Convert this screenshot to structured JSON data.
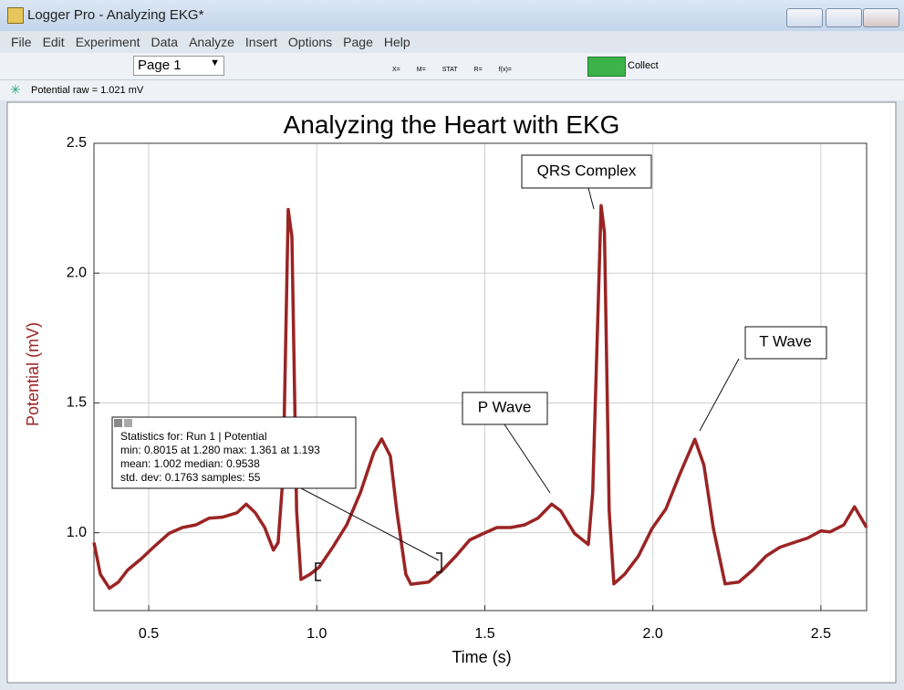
{
  "window": {
    "title": "Logger Pro - Analyzing EKG*"
  },
  "menu": [
    "File",
    "Edit",
    "Experiment",
    "Data",
    "Analyze",
    "Insert",
    "Options",
    "Page",
    "Help"
  ],
  "toolbar": {
    "page": "Page 1",
    "icon_labels": [
      "X=",
      "M=",
      "STAT",
      "R=",
      "f(x)="
    ],
    "collect": "Collect"
  },
  "status": "Potential raw = 1.021 mV",
  "chart_data": {
    "type": "line",
    "title": "Analyzing the Heart with EKG",
    "x_label": "Time (s)",
    "y_label": "Potential (mV)",
    "x": [
      0.337,
      0.356,
      0.383,
      0.41,
      0.437,
      0.478,
      0.519,
      0.56,
      0.6,
      0.64,
      0.68,
      0.72,
      0.763,
      0.79,
      0.817,
      0.845,
      0.871,
      0.885,
      0.9,
      0.915,
      0.926,
      0.94,
      0.953,
      0.98,
      1.007,
      1.048,
      1.089,
      1.13,
      1.17,
      1.193,
      1.219,
      1.238,
      1.265,
      1.28,
      1.333,
      1.374,
      1.414,
      1.455,
      1.496,
      1.536,
      1.577,
      1.618,
      1.658,
      1.699,
      1.726,
      1.767,
      1.808,
      1.821,
      1.846,
      1.856,
      1.87,
      1.884,
      1.916,
      1.957,
      1.998,
      2.039,
      2.08,
      2.125,
      2.152,
      2.18,
      2.215,
      2.256,
      2.297,
      2.337,
      2.378,
      2.419,
      2.46,
      2.5,
      2.527,
      2.568,
      2.6,
      2.636
    ],
    "values": [
      0.962,
      0.84,
      0.786,
      0.81,
      0.856,
      0.9,
      0.95,
      0.997,
      1.02,
      1.03,
      1.056,
      1.06,
      1.077,
      1.11,
      1.077,
      1.02,
      0.933,
      0.962,
      1.225,
      2.245,
      2.14,
      1.085,
      0.82,
      0.84,
      0.867,
      0.945,
      1.03,
      1.155,
      1.31,
      1.361,
      1.295,
      1.085,
      0.84,
      0.8015,
      0.81,
      0.856,
      0.91,
      0.972,
      0.997,
      1.02,
      1.02,
      1.03,
      1.056,
      1.11,
      1.084,
      0.997,
      0.955,
      1.155,
      2.26,
      2.156,
      1.085,
      0.803,
      0.84,
      0.91,
      1.017,
      1.092,
      1.225,
      1.36,
      1.26,
      1.017,
      0.803,
      0.81,
      0.856,
      0.91,
      0.944,
      0.962,
      0.979,
      1.007,
      1.003,
      1.03,
      1.1,
      1.02
    ],
    "color": "#9a2424",
    "xlim": [
      0.337,
      2.636
    ],
    "ylim": [
      0.7,
      2.5
    ],
    "xticks": [
      0.5,
      {
        "value": 1,
        "label": "1.0"
      },
      1.5,
      {
        "value": 2,
        "label": "2.0"
      },
      2.5
    ],
    "yticks": [
      {
        "value": 1,
        "label": "1.0"
      },
      1.5,
      {
        "value": 2,
        "label": "2.0"
      },
      2.5
    ],
    "grid": true,
    "annotations": [
      "QRS Complex",
      "P Wave",
      "T Wave"
    ],
    "statistics": [
      "Statistics for: Run 1 | Potential",
      "min: 0.8015 at 1.280 max: 1.361 at 1.193",
      "mean: 1.002 median: 0.9538",
      "std. dev: 0.1763 samples: 55"
    ]
  }
}
